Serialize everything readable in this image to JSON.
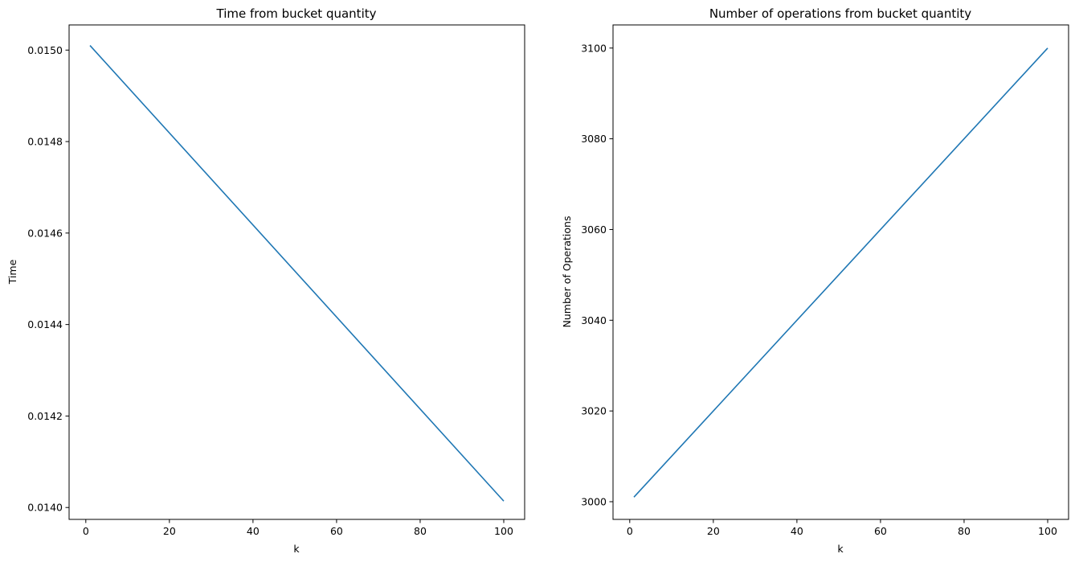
{
  "chart_data": [
    {
      "type": "line",
      "title": "Time from bucket quantity",
      "xlabel": "k",
      "ylabel": "Time",
      "xlim": [
        -4.0,
        105.0
      ],
      "ylim": [
        0.013974,
        0.015055
      ],
      "x_ticks": [
        0,
        20,
        40,
        60,
        80,
        100
      ],
      "x_tick_labels": [
        "0",
        "20",
        "40",
        "60",
        "80",
        "100"
      ],
      "y_ticks": [
        0.014,
        0.0142,
        0.0144,
        0.0146,
        0.0148,
        0.015
      ],
      "y_tick_labels": [
        "0.0140",
        "0.0142",
        "0.0144",
        "0.0146",
        "0.0148",
        "0.0150"
      ],
      "grid": false,
      "color": "#1f77b4",
      "series": [
        {
          "x": [
            1,
            100
          ],
          "y": [
            0.01501,
            0.014014
          ]
        }
      ]
    },
    {
      "type": "line",
      "title": "Number of operations from bucket quantity",
      "xlabel": "k",
      "ylabel": "Number of Operations",
      "xlim": [
        -4.0,
        105.0
      ],
      "ylim": [
        2996.1,
        3105.1
      ],
      "x_ticks": [
        0,
        20,
        40,
        60,
        80,
        100
      ],
      "x_tick_labels": [
        "0",
        "20",
        "40",
        "60",
        "80",
        "100"
      ],
      "y_ticks": [
        3000,
        3020,
        3040,
        3060,
        3080,
        3100
      ],
      "y_tick_labels": [
        "3000",
        "3020",
        "3040",
        "3060",
        "3080",
        "3100"
      ],
      "grid": false,
      "color": "#1f77b4",
      "series": [
        {
          "x": [
            1,
            100
          ],
          "y": [
            3001,
            3100
          ]
        }
      ]
    }
  ]
}
